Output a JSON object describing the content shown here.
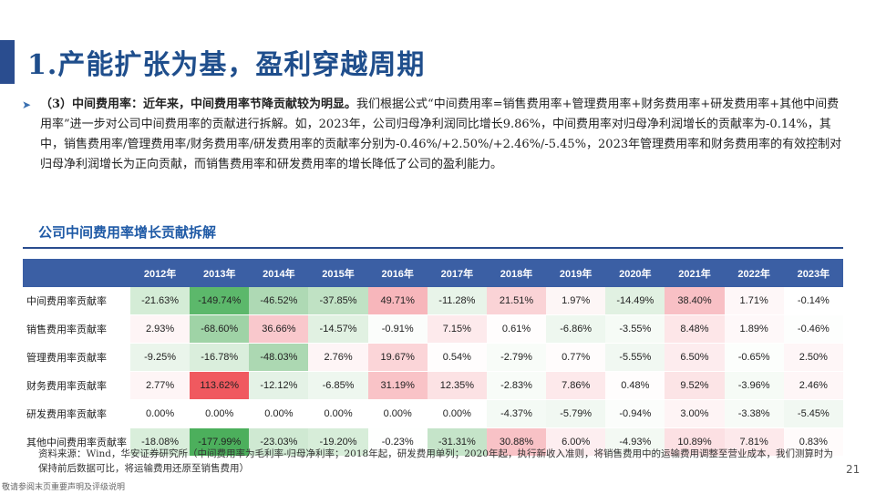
{
  "title": "1.产能扩张为基，盈利穿越周期",
  "bullet": {
    "head": "（3）中间费用率：近年来，中间费用率节降贡献较为明显。",
    "body": "我们根据公式“中间费用率=销售费用率+管理费用率+财务费用率+研发费用率+其他中间费用率”进一步对公司中间费用率的贡献进行拆解。如，2023年，公司归母净利润同比增长9.86%，中间费用率对归母净利润增长的贡献率为-0.14%，其中，销售费用率/管理费用率/财务费用率/研发费用率的贡献率分别为-0.46%/+2.50%/+2.46%/-5.45%，2023年管理费用率和财务费用率的有效控制对归母净利润增长为正向贡献，而销售费用率和研发费用率的增长降低了公司的盈利能力。"
  },
  "section_title": "公司中间费用率增长贡献拆解",
  "table": {
    "headers": [
      "",
      "2012年",
      "2013年",
      "2014年",
      "2015年",
      "2016年",
      "2017年",
      "2018年",
      "2019年",
      "2020年",
      "2021年",
      "2022年",
      "2023年"
    ],
    "rows": [
      {
        "label": "中间费用率贡献率",
        "values": [
          "-21.63%",
          "-149.74%",
          "-46.52%",
          "-37.85%",
          "49.71%",
          "-11.28%",
          "21.51%",
          "1.97%",
          "-14.49%",
          "38.40%",
          "1.71%",
          "-0.14%"
        ],
        "colors": [
          "#d4ecd6",
          "#5cb86b",
          "#aed9b4",
          "#c0e2c4",
          "#f7b6bb",
          "#e8f4e9",
          "#fad3d6",
          "#fdf6f6",
          "#e1f1e2",
          "#f8c0c5",
          "#fef7f8",
          "#ffffff"
        ]
      },
      {
        "label": "销售费用率贡献率",
        "values": [
          "2.93%",
          "-68.60%",
          "36.66%",
          "-14.57%",
          "-0.91%",
          "7.15%",
          "0.61%",
          "-6.86%",
          "-3.55%",
          "8.48%",
          "1.89%",
          "-0.46%"
        ],
        "colors": [
          "#fef5f6",
          "#9fd3a6",
          "#f9c8cc",
          "#e1f1e2",
          "#fbfdfb",
          "#fdeaec",
          "#fffdfd",
          "#eef7ef",
          "#f6fbf6",
          "#fde6e8",
          "#fef8f9",
          "#fdfefd"
        ]
      },
      {
        "label": "管理费用率贡献率",
        "values": [
          "-9.25%",
          "-16.78%",
          "-48.03%",
          "2.76%",
          "19.67%",
          "0.54%",
          "-2.79%",
          "0.77%",
          "-5.55%",
          "6.50%",
          "-0.65%",
          "2.50%"
        ],
        "colors": [
          "#eaf5eb",
          "#daeedc",
          "#acd8b2",
          "#fef5f6",
          "#fbd5d8",
          "#fffdfd",
          "#f8fcf8",
          "#fffcfc",
          "#f1f8f2",
          "#fdecee",
          "#fcfefc",
          "#fef6f7"
        ]
      },
      {
        "label": "财务费用率贡献率",
        "values": [
          "2.77%",
          "113.62%",
          "-12.12%",
          "-6.85%",
          "31.19%",
          "12.35%",
          "-2.83%",
          "7.86%",
          "0.48%",
          "9.52%",
          "-3.96%",
          "2.46%"
        ],
        "colors": [
          "#fef5f6",
          "#f0595f",
          "#e4f2e6",
          "#eef7ef",
          "#f9c3c7",
          "#fce2e4",
          "#f8fcf8",
          "#fde9eb",
          "#fffdfd",
          "#fce4e6",
          "#f6fbf6",
          "#fef6f7"
        ]
      },
      {
        "label": "研发费用率贡献率",
        "values": [
          "0.00%",
          "0.00%",
          "0.00%",
          "0.00%",
          "0.00%",
          "0.00%",
          "-4.37%",
          "-5.79%",
          "-0.94%",
          "3.00%",
          "-3.38%",
          "-5.45%"
        ],
        "colors": [
          "#ffffff",
          "#ffffff",
          "#ffffff",
          "#ffffff",
          "#ffffff",
          "#ffffff",
          "#f4faf5",
          "#f1f8f2",
          "#fbfdfb",
          "#fef4f5",
          "#f7fbf7",
          "#f1f8f2"
        ]
      },
      {
        "label": "其他中间费用率贡献率",
        "values": [
          "-18.08%",
          "-177.99%",
          "-23.03%",
          "-19.20%",
          "-0.23%",
          "-31.31%",
          "30.88%",
          "6.00%",
          "-4.93%",
          "10.89%",
          "7.81%",
          "0.83%"
        ],
        "colors": [
          "#d9eedb",
          "#4caf5c",
          "#cfe9d2",
          "#d7edd9",
          "#fefffe",
          "#c5e4c9",
          "#f8c2c6",
          "#fdeef0",
          "#f3f9f3",
          "#fce0e3",
          "#fde9eb",
          "#fffbfb"
        ]
      }
    ]
  },
  "source": "资料来源：Wind，华安证券研究所（中间费用率为毛利率-归母净利率；2018年起，研发费用单列；2020年起，执行新收入准则，将销售费用中的运输费用调整至营业成本，我们测算时为保持前后数据可比，将运输费用还原至销售费用）",
  "page_number": "21",
  "disclaimer": "敬请参阅末页重要声明及评级说明"
}
